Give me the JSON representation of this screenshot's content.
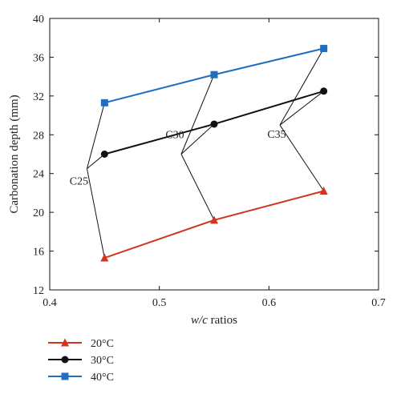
{
  "chart_data": {
    "type": "line",
    "xlabel_italic": "w/c",
    "xlabel_rest": " ratios",
    "ylabel": "Carbonation depth (mm)",
    "xlim": [
      0.4,
      0.7
    ],
    "ylim": [
      12,
      40
    ],
    "xticks": [
      0.4,
      0.5,
      0.6,
      0.7
    ],
    "xtick_labels": [
      "0.4",
      "0.5",
      "0.6",
      "0.7"
    ],
    "yticks": [
      12,
      16,
      20,
      24,
      28,
      32,
      36,
      40
    ],
    "ytick_labels": [
      "12",
      "16",
      "20",
      "24",
      "28",
      "32",
      "36",
      "40"
    ],
    "grid": false,
    "legend_position": "bottom-left below plot",
    "x": [
      0.45,
      0.55,
      0.65
    ],
    "series": [
      {
        "name": "20°C",
        "values": [
          15.3,
          19.2,
          22.2
        ],
        "color": "#d2341e",
        "marker": "triangle"
      },
      {
        "name": "30°C",
        "values": [
          26.0,
          29.1,
          32.5
        ],
        "color": "#111111",
        "marker": "circle"
      },
      {
        "name": "40°C",
        "values": [
          31.3,
          34.2,
          36.9
        ],
        "color": "#1f6fbf",
        "marker": "square"
      }
    ],
    "annotations": [
      {
        "text": "C25",
        "anchor": [
          0.434,
          24.5
        ],
        "targets": [
          [
            0.45,
            31.3
          ],
          [
            0.45,
            26.0
          ],
          [
            0.45,
            15.3
          ]
        ]
      },
      {
        "text": "C30",
        "anchor": [
          0.52,
          26.0
        ],
        "targets": [
          [
            0.55,
            34.2
          ],
          [
            0.55,
            29.1
          ],
          [
            0.55,
            19.2
          ]
        ]
      },
      {
        "text": "C35",
        "anchor": [
          0.61,
          29.0
        ],
        "targets": [
          [
            0.65,
            36.9
          ],
          [
            0.65,
            32.5
          ],
          [
            0.65,
            22.2
          ]
        ]
      }
    ]
  }
}
